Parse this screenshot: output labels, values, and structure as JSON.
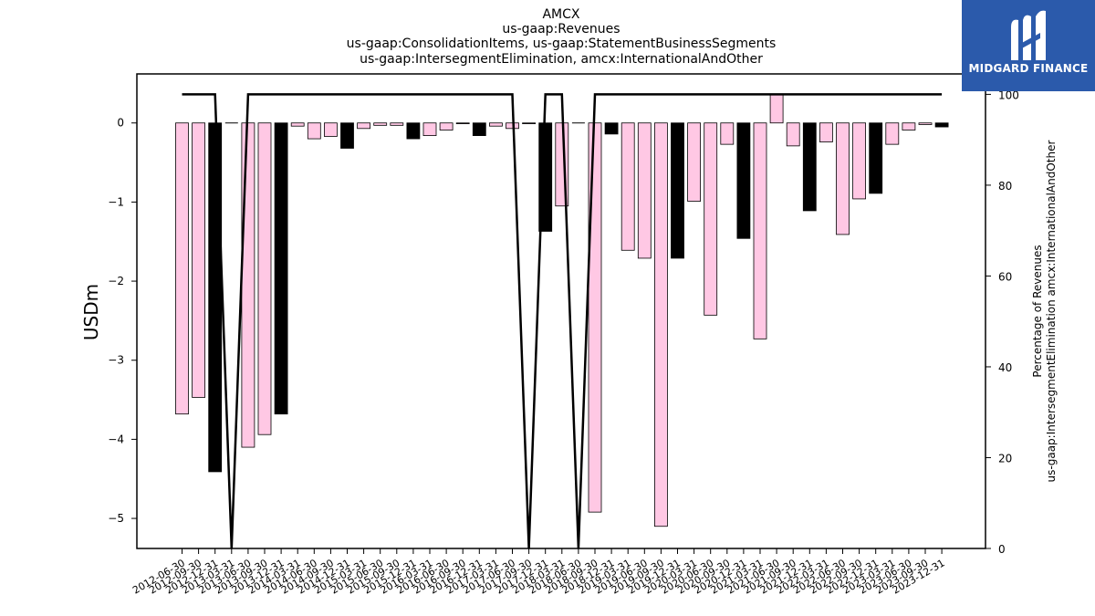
{
  "brand": {
    "name": "MIDGARD FINANCE",
    "bg_color": "#2b5aab",
    "icon": "midgard-logo-icon"
  },
  "chart_data": {
    "type": "bar",
    "title_lines": [
      "AMCX",
      "us-gaap:Revenues",
      "us-gaap:ConsolidationItems, us-gaap:StatementBusinessSegments",
      "us-gaap:IntersegmentElimination, amcx:InternationalAndOther"
    ],
    "ylabel": "USDm",
    "y2label_lines": [
      "Percentage of Revenues",
      "us-gaap:IntersegmentElimination amcx:InternationalAndOther"
    ],
    "ylim": [
      -5.38,
      0.62
    ],
    "y2lim": [
      0,
      104.5
    ],
    "yticks": [
      0,
      -1,
      -2,
      -3,
      -4,
      -5
    ],
    "y2ticks": [
      0,
      20,
      40,
      60,
      80,
      100
    ],
    "colors": {
      "pink": "#ffc8e4",
      "black": "#000000"
    },
    "categories": [
      "2012-06-30",
      "2012-09-30",
      "2012-12-31",
      "2013-03-31",
      "2013-06-30",
      "2013-09-30",
      "2013-12-31",
      "2014-03-31",
      "2014-06-30",
      "2014-09-30",
      "2014-12-31",
      "2015-03-31",
      "2015-06-30",
      "2015-09-30",
      "2015-12-31",
      "2016-03-31",
      "2016-06-30",
      "2016-09-30",
      "2016-12-31",
      "2017-03-31",
      "2017-06-30",
      "2017-09-30",
      "2017-12-31",
      "2018-03-31",
      "2018-06-30",
      "2018-09-30",
      "2018-12-31",
      "2019-03-31",
      "2019-06-30",
      "2019-09-30",
      "2019-12-31",
      "2020-03-31",
      "2020-06-30",
      "2020-09-30",
      "2020-12-31",
      "2021-03-31",
      "2021-06-30",
      "2021-09-30",
      "2021-12-31",
      "2022-03-31",
      "2022-06-30",
      "2022-09-30",
      "2022-12-31",
      "2023-03-31",
      "2023-06-30",
      "2023-09-30",
      "2023-12-31"
    ],
    "values": [
      -3.68,
      -3.47,
      -4.41,
      0,
      -4.1,
      -3.94,
      -3.68,
      -0.04,
      -0.2,
      -0.17,
      -0.32,
      -0.07,
      -0.03,
      -0.03,
      -0.2,
      -0.16,
      -0.09,
      -0.01,
      -0.16,
      -0.04,
      -0.07,
      -0.01,
      -1.37,
      -1.05,
      0,
      -4.92,
      -0.14,
      -1.61,
      -1.71,
      -5.1,
      -1.71,
      -0.99,
      -2.43,
      -0.27,
      -1.46,
      -2.73,
      0.36,
      -0.29,
      -1.11,
      -0.24,
      -1.41,
      -0.96,
      -0.89,
      -0.27,
      -0.09,
      -0.02,
      -0.05
    ],
    "bar_colors": [
      "pink",
      "pink",
      "black",
      "pink",
      "pink",
      "pink",
      "black",
      "pink",
      "pink",
      "pink",
      "black",
      "pink",
      "pink",
      "pink",
      "black",
      "pink",
      "pink",
      "pink",
      "black",
      "pink",
      "pink",
      "pink",
      "black",
      "pink",
      "pink",
      "pink",
      "black",
      "pink",
      "pink",
      "pink",
      "black",
      "pink",
      "pink",
      "pink",
      "black",
      "pink",
      "pink",
      "pink",
      "black",
      "pink",
      "pink",
      "pink",
      "black",
      "pink",
      "pink",
      "pink",
      "black"
    ],
    "percentage_line": [
      100,
      100,
      100,
      0,
      100,
      100,
      100,
      100,
      100,
      100,
      100,
      100,
      100,
      100,
      100,
      100,
      100,
      100,
      100,
      100,
      100,
      0,
      100,
      100,
      0,
      100,
      100,
      100,
      100,
      100,
      100,
      100,
      100,
      100,
      100,
      100,
      100,
      100,
      100,
      100,
      100,
      100,
      100,
      100,
      100,
      100,
      100
    ]
  }
}
